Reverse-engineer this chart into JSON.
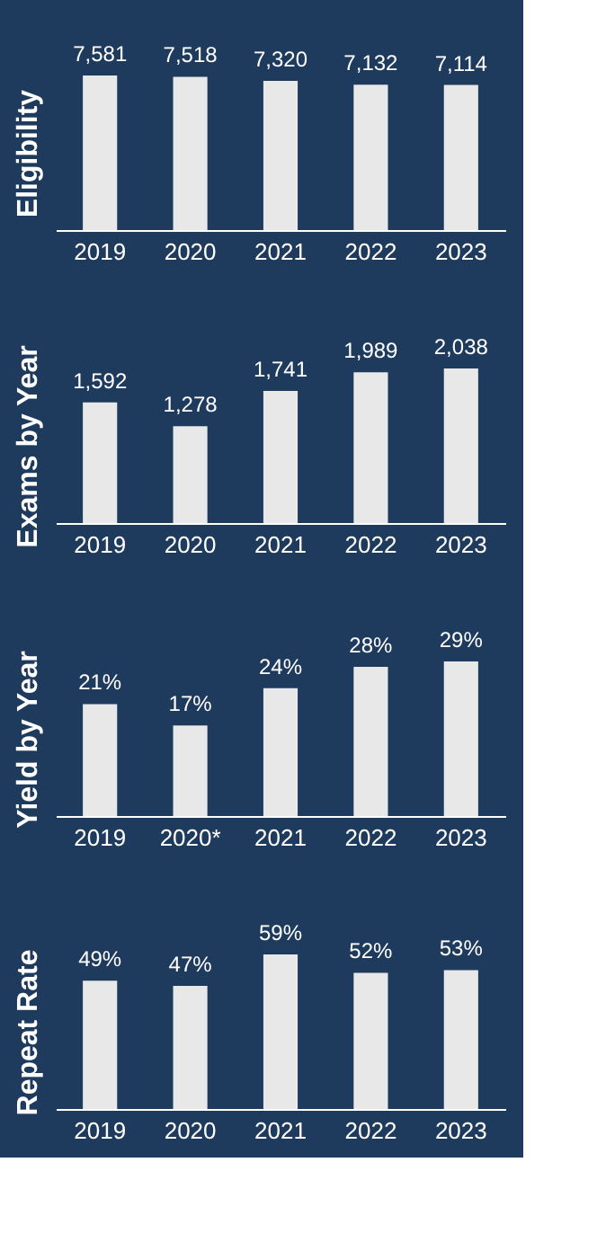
{
  "chart_data": [
    {
      "type": "bar",
      "ylabel": "Eligibility",
      "categories": [
        "2019",
        "2020",
        "2021",
        "2022",
        "2023"
      ],
      "values": [
        7581,
        7518,
        7320,
        7132,
        7114
      ],
      "value_labels": [
        "7,581",
        "7,518",
        "7,320",
        "7,132",
        "7,114"
      ],
      "color": "#e8e8e8",
      "tick_labels": "x",
      "grid": false
    },
    {
      "type": "bar",
      "ylabel": "Exams by Year",
      "categories": [
        "2019",
        "2020",
        "2021",
        "2022",
        "2023"
      ],
      "values": [
        1592,
        1278,
        1741,
        1989,
        2038
      ],
      "value_labels": [
        "1,592",
        "1,278",
        "1,741",
        "1,989",
        "2,038"
      ],
      "color": "#e8e8e8",
      "tick_labels": "x",
      "grid": false
    },
    {
      "type": "bar",
      "ylabel": "Yield by Year",
      "categories": [
        "2019",
        "2020*",
        "2021",
        "2022",
        "2023"
      ],
      "values": [
        21,
        17,
        24,
        28,
        29
      ],
      "value_labels": [
        "21%",
        "17%",
        "24%",
        "28%",
        "29%"
      ],
      "color": "#e8e8e8",
      "tick_labels": "x",
      "grid": false
    },
    {
      "type": "bar",
      "ylabel": "Repeat Rate",
      "categories": [
        "2019",
        "2020",
        "2021",
        "2022",
        "2023"
      ],
      "values": [
        49,
        47,
        59,
        52,
        53
      ],
      "value_labels": [
        "49%",
        "47%",
        "59%",
        "52%",
        "53%"
      ],
      "color": "#e8e8e8",
      "tick_labels": "x",
      "grid": false
    }
  ]
}
